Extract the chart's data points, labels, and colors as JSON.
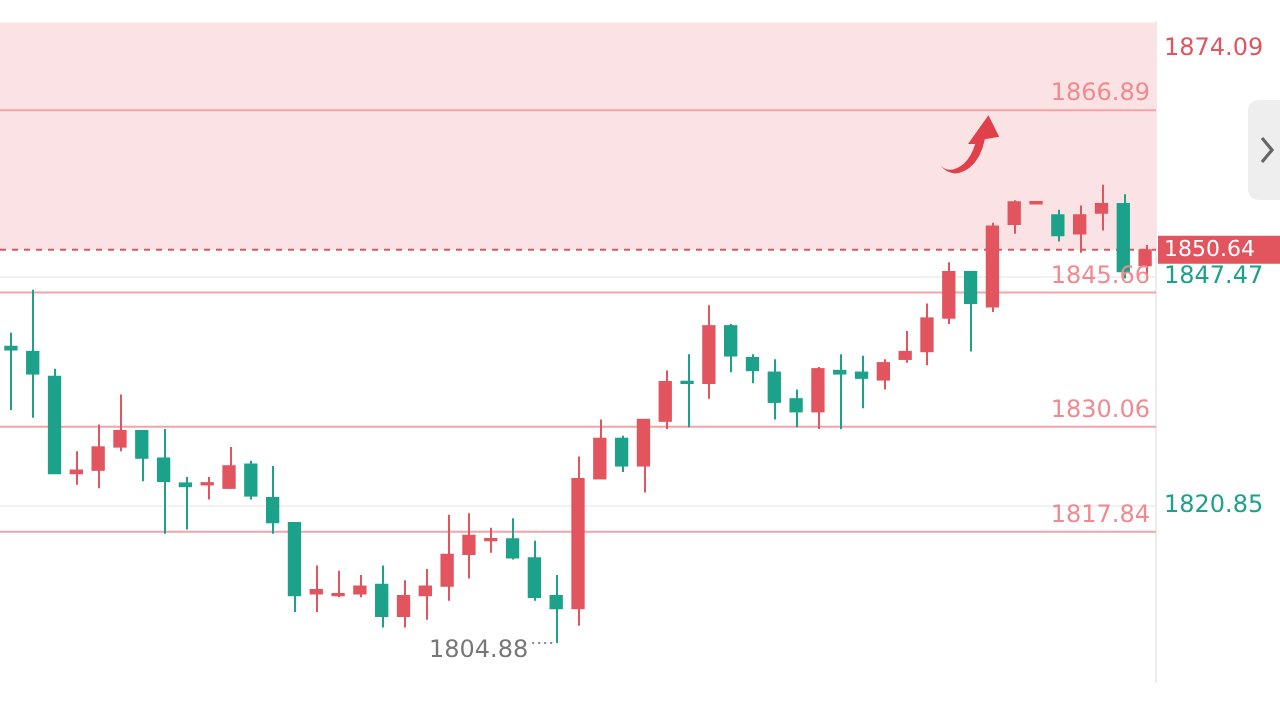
{
  "chart_data": {
    "type": "candlestick",
    "categories": [
      null,
      null,
      null,
      null,
      null,
      null,
      null,
      null,
      null,
      null,
      null,
      null,
      null,
      null,
      null,
      null,
      null,
      null,
      null,
      null,
      null,
      null,
      null,
      null,
      null,
      null,
      null,
      null,
      null,
      null,
      null,
      null,
      null,
      null,
      null,
      null,
      null,
      null,
      null,
      null,
      null,
      null,
      null,
      null,
      null,
      null,
      null,
      null,
      null,
      null,
      null,
      null,
      null
    ],
    "ohlc": [
      [
        1839.4,
        1841.0,
        1832.0,
        1839.0
      ],
      [
        1838.8,
        1846.0,
        1831.1,
        1836.2
      ],
      [
        1835.9,
        1836.8,
        1824.6,
        1824.6
      ],
      [
        1824.6,
        1827.2,
        1823.3,
        1825.0
      ],
      [
        1825.0,
        1830.3,
        1822.9,
        1827.7
      ],
      [
        1827.7,
        1833.8,
        1827.2,
        1829.6
      ],
      [
        1829.6,
        1829.6,
        1823.7,
        1826.4
      ],
      [
        1826.4,
        1829.8,
        1817.6,
        1823.7
      ],
      [
        1823.5,
        1824.2,
        1818.1,
        1823.1
      ],
      [
        1823.3,
        1824.2,
        1821.6,
        1823.5
      ],
      [
        1822.9,
        1827.7,
        1822.9,
        1825.5
      ],
      [
        1825.7,
        1826.1,
        1821.6,
        1822.0
      ],
      [
        1821.8,
        1825.5,
        1817.6,
        1818.9
      ],
      [
        1818.9,
        1818.9,
        1808.5,
        1810.4
      ],
      [
        1810.6,
        1813.9,
        1808.5,
        1811.1
      ],
      [
        1810.4,
        1813.3,
        1810.2,
        1810.6
      ],
      [
        1810.6,
        1812.8,
        1810.2,
        1811.5
      ],
      [
        1811.7,
        1813.9,
        1806.7,
        1808.0
      ],
      [
        1808.0,
        1812.2,
        1806.7,
        1810.4
      ],
      [
        1810.4,
        1813.5,
        1807.6,
        1811.5
      ],
      [
        1811.5,
        1819.8,
        1809.8,
        1815.2
      ],
      [
        1815.2,
        1820.0,
        1812.4,
        1817.4
      ],
      [
        1816.8,
        1818.3,
        1815.4,
        1817.0
      ],
      [
        1817.0,
        1819.4,
        1814.6,
        1814.8
      ],
      [
        1814.8,
        1816.8,
        1809.8,
        1810.2
      ],
      [
        1810.4,
        1812.8,
        1804.88,
        1808.9
      ],
      [
        1808.9,
        1826.6,
        1806.9,
        1824.0
      ],
      [
        1824.0,
        1830.9,
        1824.0,
        1828.7
      ],
      [
        1828.7,
        1829.0,
        1824.8,
        1825.5
      ],
      [
        1825.5,
        1830.9,
        1822.4,
        1830.9
      ],
      [
        1830.7,
        1836.6,
        1829.8,
        1835.3
      ],
      [
        1835.3,
        1838.5,
        1830.0,
        1835.1
      ],
      [
        1835.1,
        1844.2,
        1833.3,
        1841.8
      ],
      [
        1841.8,
        1842.0,
        1836.4,
        1838.3
      ],
      [
        1838.1,
        1838.5,
        1835.1,
        1836.6
      ],
      [
        1836.4,
        1837.9,
        1830.9,
        1832.9
      ],
      [
        1833.3,
        1834.4,
        1830.0,
        1831.8
      ],
      [
        1831.8,
        1837.0,
        1829.8,
        1836.8
      ],
      [
        1836.6,
        1838.5,
        1829.8,
        1836.2
      ],
      [
        1836.4,
        1838.3,
        1832.2,
        1835.7
      ],
      [
        1835.5,
        1837.9,
        1834.4,
        1837.5
      ],
      [
        1837.9,
        1841.2,
        1837.5,
        1838.8
      ],
      [
        1838.8,
        1844.4,
        1837.2,
        1842.7
      ],
      [
        1842.7,
        1849.2,
        1842.0,
        1848.1
      ],
      [
        1848.1,
        1848.1,
        1838.8,
        1844.4
      ],
      [
        1844.0,
        1853.8,
        1843.4,
        1853.4
      ],
      [
        1853.6,
        1856.4,
        1852.5,
        1856.2
      ],
      [
        1856.0,
        1856.1,
        1856.0,
        1856.1
      ],
      [
        1854.7,
        1855.3,
        1851.6,
        1852.3
      ],
      [
        1852.5,
        1855.8,
        1850.3,
        1854.7
      ],
      [
        1854.9,
        1858.2,
        1852.9,
        1856.0
      ],
      [
        1856.0,
        1857.1,
        1847.3,
        1848.1
      ],
      [
        1848.8,
        1851.2,
        1847.7,
        1850.64
      ]
    ],
    "colors": [
      "#1ca28a",
      "#1ca28a",
      "#1ca28a",
      "#e2545e",
      "#e2545e",
      "#e2545e",
      "#1ca28a",
      "#1ca28a",
      "#1ca28a",
      "#e2545e",
      "#e2545e",
      "#1ca28a",
      "#1ca28a",
      "#1ca28a",
      "#e2545e",
      "#e2545e",
      "#e2545e",
      "#1ca28a",
      "#e2545e",
      "#e2545e",
      "#e2545e",
      "#e2545e",
      "#e2545e",
      "#1ca28a",
      "#1ca28a",
      "#1ca28a",
      "#e2545e",
      "#e2545e",
      "#1ca28a",
      "#e2545e",
      "#e2545e",
      "#1ca28a",
      "#e2545e",
      "#1ca28a",
      "#1ca28a",
      "#1ca28a",
      "#1ca28a",
      "#e2545e",
      "#1ca28a",
      "#1ca28a",
      "#e2545e",
      "#e2545e",
      "#e2545e",
      "#e2545e",
      "#1ca28a",
      "#e2545e",
      "#e2545e",
      "#e2545e",
      "#1ca28a",
      "#e2545e",
      "#e2545e",
      "#1ca28a",
      "#e2545e"
    ],
    "ylim": [
      1800.4,
      1877.1
    ],
    "yticks": [
      1820.85,
      1847.47,
      1874.09
    ],
    "grid": "y",
    "ref_lines": [
      {
        "axis": "y",
        "value": 1866.89,
        "label": "1866.89",
        "color": "#f4a3a8",
        "line_style": "solid"
      },
      {
        "axis": "y",
        "value": 1845.66,
        "label": "1845.66",
        "color": "#f4a3a8",
        "line_style": "solid"
      },
      {
        "axis": "y",
        "value": 1830.06,
        "label": "1830.06",
        "color": "#f4a3a8",
        "line_style": "solid"
      },
      {
        "axis": "y",
        "value": 1817.84,
        "label": "1817.84",
        "color": "#f4a3a8",
        "line_style": "solid"
      },
      {
        "axis": "y",
        "value": 1850.64,
        "label": "1850.64",
        "color": "#e2545e",
        "line_style": "dashed"
      }
    ],
    "bands": [
      {
        "axis": "y",
        "from": 1850.64,
        "to": 1877.1,
        "color": "#fbe3e5"
      }
    ],
    "annotations": [
      "1804.88"
    ]
  }
}
